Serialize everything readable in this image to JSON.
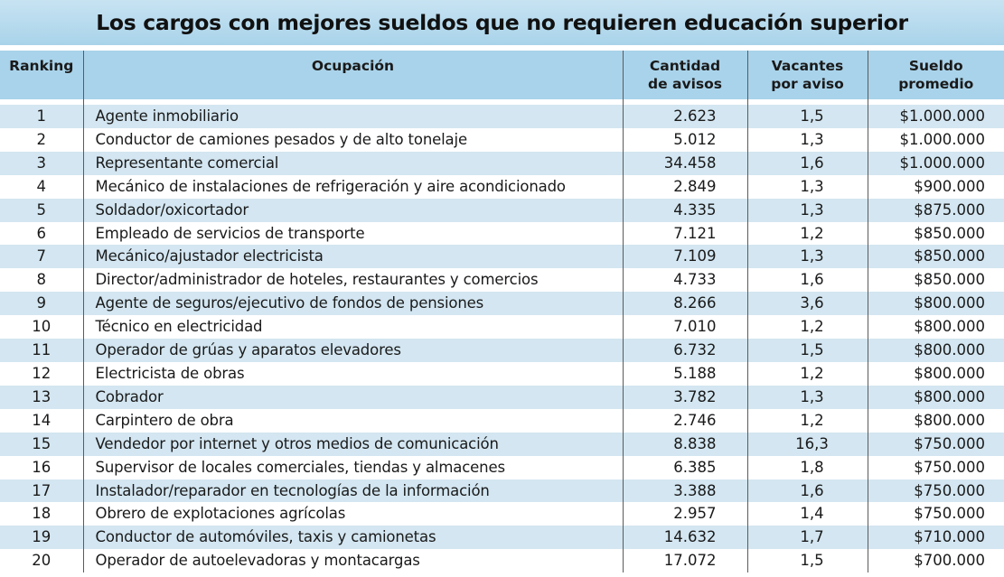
{
  "chart_data": {
    "type": "table",
    "title": "Los cargos con mejores sueldos que no requieren educación superior",
    "columns": [
      "Ranking",
      "Ocupación",
      "Cantidad de avisos",
      "Vacantes por aviso",
      "Sueldo promedio"
    ],
    "header_lines": {
      "cantidad": [
        "Cantidad",
        "de avisos"
      ],
      "vacantes": [
        "Vacantes",
        "por aviso"
      ],
      "sueldo": [
        "Sueldo",
        "promedio"
      ]
    },
    "rows": [
      [
        "1",
        "Agente inmobiliario",
        "2.623",
        "1,5",
        "$1.000.000"
      ],
      [
        "2",
        "Conductor de camiones pesados y de alto tonelaje",
        "5.012",
        "1,3",
        "$1.000.000"
      ],
      [
        "3",
        "Representante comercial",
        "34.458",
        "1,6",
        "$1.000.000"
      ],
      [
        "4",
        "Mecánico de instalaciones de refrigeración y aire acondicionado",
        "2.849",
        "1,3",
        "$900.000"
      ],
      [
        "5",
        "Soldador/oxicortador",
        "4.335",
        "1,3",
        "$875.000"
      ],
      [
        "6",
        "Empleado de servicios de transporte",
        "7.121",
        "1,2",
        "$850.000"
      ],
      [
        "7",
        "Mecánico/ajustador electricista",
        "7.109",
        "1,3",
        "$850.000"
      ],
      [
        "8",
        "Director/administrador de hoteles, restaurantes y comercios",
        "4.733",
        "1,6",
        "$850.000"
      ],
      [
        "9",
        "Agente de seguros/ejecutivo de fondos de pensiones",
        "8.266",
        "3,6",
        "$800.000"
      ],
      [
        "10",
        "Técnico en electricidad",
        "7.010",
        "1,2",
        "$800.000"
      ],
      [
        "11",
        "Operador de grúas y aparatos elevadores",
        "6.732",
        "1,5",
        "$800.000"
      ],
      [
        "12",
        "Electricista de obras",
        "5.188",
        "1,2",
        "$800.000"
      ],
      [
        "13",
        "Cobrador",
        "3.782",
        "1,3",
        "$800.000"
      ],
      [
        "14",
        "Carpintero de obra",
        "2.746",
        "1,2",
        "$800.000"
      ],
      [
        "15",
        "Vendedor por internet y otros medios de comunicación",
        "8.838",
        "16,3",
        "$750.000"
      ],
      [
        "16",
        "Supervisor de locales comerciales, tiendas y almacenes",
        "6.385",
        "1,8",
        "$750.000"
      ],
      [
        "17",
        "Instalador/reparador en tecnologías de la información",
        "3.388",
        "1,6",
        "$750.000"
      ],
      [
        "18",
        "Obrero de explotaciones agrícolas",
        "2.957",
        "1,4",
        "$750.000"
      ],
      [
        "19",
        "Conductor de automóviles, taxis y camionetas",
        "14.632",
        "1,7",
        "$710.000"
      ],
      [
        "20",
        "Operador de autoelevadoras y montacargas",
        "17.072",
        "1,5",
        "$700.000"
      ]
    ],
    "colors": {
      "header_bg": "#a9d3ea",
      "stripe_bg": "#d3e6f1"
    }
  }
}
